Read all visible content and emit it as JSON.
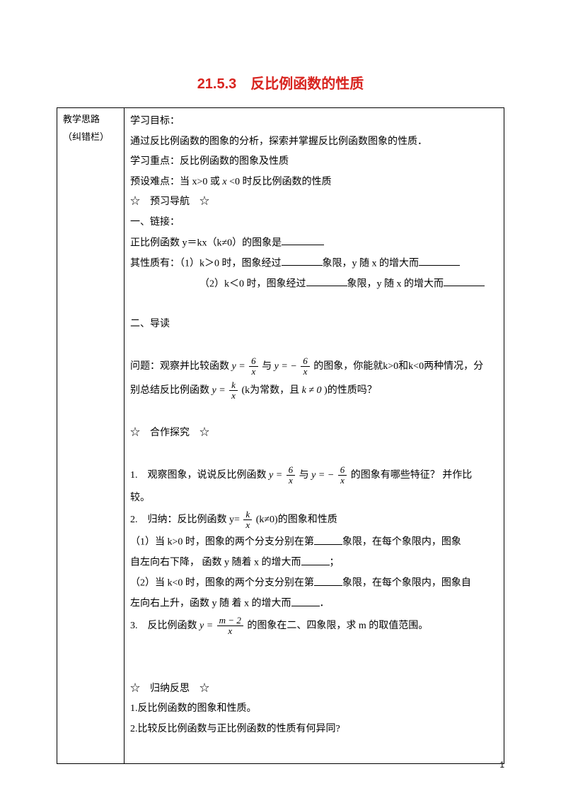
{
  "title": "21.5.3　反比例函数的性质",
  "title_color": "#d8241f",
  "left": {
    "line1": "教学思路",
    "line2": "（纠错栏）"
  },
  "sep": {
    "preview": "☆　预习导航　☆",
    "coop": "☆　合作探究　☆",
    "summary": "☆　归纳反思　☆"
  },
  "c": {
    "goal_h": "学习目标：",
    "goal_t": "通过反比例函数的图象的分析，探索并掌握反比例函数图象的性质．",
    "focus": "学习重点：反比例函数的图象及性质",
    "diff_a": "预设难点：当 x>0 或",
    "diff_b": "x",
    "diff_c": " <0 时反比例函数的性质",
    "link_h": "一、链接：",
    "link_l1a": "正比例函数 y＝kx（k≠0）的图象是",
    "link_l2a": "其性质有：（1）k＞0 时，图象经过",
    "link_l2b": "象限，y 随 x 的增大而",
    "link_l3a": "（2）k＜0 时，图象经过",
    "link_l3b": "象限，y 随 x 的增大而",
    "read_h": "二、导读",
    "q_a": "问题：观察并比较函数",
    "q_y1": "y =",
    "q_with": "与",
    "q_y2": "y = −",
    "q_b": "的图象，你能就k>0和k<0两种情况，分",
    "q_c": "别总结反比例函数",
    "q_y3": "y =",
    "q_d": "(k为常数，且",
    "q_e": "k ≠ 0",
    "q_f": ")的性质吗？",
    "ex1_a": "1.　观察图象，说说反比例函数",
    "ex1_b": "y =",
    "ex1_c": "与",
    "ex1_d": "y = −",
    "ex1_e": "的图象有哪些特征？ 并作比",
    "ex1_f": "较。",
    "ex2_a": "2.　归纳：反比例函数 y=",
    "ex2_b": "(k≠0)的图象和性质",
    "ex2_l1a": "（1）当 k>0 时，图象的两个分支分别在第",
    "ex2_l1b": "象限，在每个象限内，图象",
    "ex2_l1c": "自左向右下降， 函数 y 随着  x 的增大而",
    "ex2_l1d": "；",
    "ex2_l2a": "（2）当 k<0 时，图象的两个分支分别在第",
    "ex2_l2b": "象限，在每个象限内，图象自",
    "ex2_l2c": "左向右上升，函数 y  随 着  x 的增大而",
    "ex2_l2d": "．",
    "ex3_a": "3.　反比例函数",
    "ex3_b": "y =",
    "ex3_c": " 的图象在二、四象限，求 m 的取值范围。",
    "sum1": "1.反比例函数的图象和性质。",
    "sum2": "2.比较反比例函数与正比例函数的性质有何异同?",
    "f6": "6",
    "fx": "x",
    "fk": "k",
    "fm2": "m − 2"
  },
  "page_num": "1"
}
